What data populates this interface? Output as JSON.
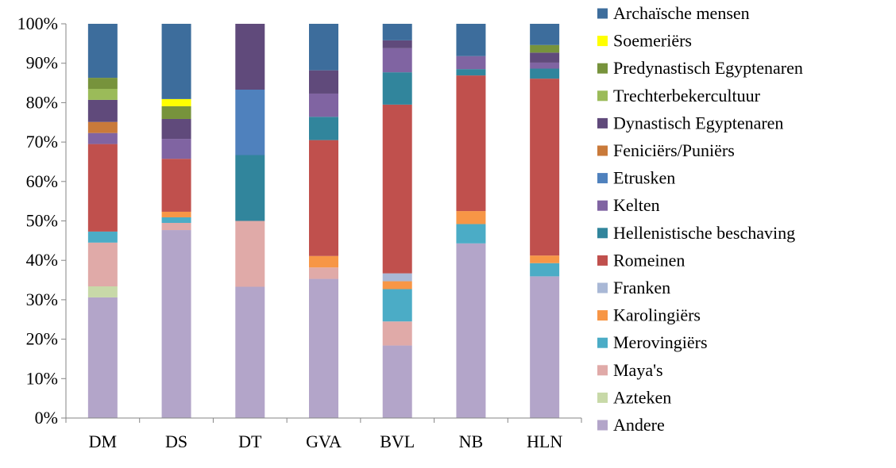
{
  "chart_data": {
    "type": "bar",
    "stacked": true,
    "percent": true,
    "categories": [
      "DM",
      "DS",
      "DT",
      "GVA",
      "BVL",
      "NB",
      "HLN"
    ],
    "y_ticks": [
      "0%",
      "10%",
      "20%",
      "30%",
      "40%",
      "50%",
      "60%",
      "70%",
      "80%",
      "90%",
      "100%"
    ],
    "ylim": [
      0,
      100
    ],
    "grid": false,
    "legend_position": "right",
    "series": [
      {
        "name": "Andere",
        "color": "#b3a5c9",
        "values": [
          30.6,
          47.2,
          33.3,
          35.3,
          18.4,
          44.3,
          35.4
        ]
      },
      {
        "name": "Azteken",
        "color": "#c8d9a8",
        "values": [
          2.8,
          0,
          0,
          0,
          0,
          0,
          0
        ]
      },
      {
        "name": "Maya's",
        "color": "#e0aaa8",
        "values": [
          11.1,
          1.8,
          16.7,
          2.9,
          6.1,
          0,
          0
        ]
      },
      {
        "name": "Merovingiërs",
        "color": "#4bacc6",
        "values": [
          2.8,
          1.4,
          0,
          0,
          8.2,
          4.9,
          3.3
        ]
      },
      {
        "name": "Karolingiërs",
        "color": "#f79646",
        "values": [
          0,
          1.4,
          0,
          2.9,
          2.0,
          3.3,
          1.9
        ]
      },
      {
        "name": "Franken",
        "color": "#a9b8d6",
        "values": [
          0,
          0,
          0,
          0,
          2.0,
          0,
          0
        ]
      },
      {
        "name": "Romeinen",
        "color": "#c0504d",
        "values": [
          22.2,
          13.3,
          0,
          29.4,
          42.8,
          34.4,
          44.2
        ]
      },
      {
        "name": "Hellenistische beschaving",
        "color": "#31859c",
        "values": [
          0,
          0,
          16.7,
          5.9,
          8.2,
          1.6,
          2.5
        ]
      },
      {
        "name": "Kelten",
        "color": "#8064a2",
        "values": [
          2.8,
          5.0,
          0,
          5.9,
          6.1,
          3.3,
          1.5
        ]
      },
      {
        "name": "Etrusken",
        "color": "#4f81bd",
        "values": [
          0,
          0,
          16.6,
          0,
          0,
          0,
          0
        ]
      },
      {
        "name": "Feniciërs/Puniërs",
        "color": "#c97a3a",
        "values": [
          2.8,
          0,
          0,
          0,
          0,
          0,
          0
        ]
      },
      {
        "name": "Dynastisch Egyptenaren",
        "color": "#604a7b",
        "values": [
          5.6,
          5.0,
          16.7,
          5.9,
          2.0,
          0,
          2.5
        ]
      },
      {
        "name": "Trechterbekercultuur",
        "color": "#9bbb59",
        "values": [
          2.8,
          0,
          0,
          0,
          0,
          0,
          0
        ]
      },
      {
        "name": "Predynastisch Egyptenaren",
        "color": "#77933c",
        "values": [
          2.8,
          3.2,
          0,
          0,
          0,
          0,
          1.9
        ]
      },
      {
        "name": "Soemeriërs",
        "color": "#ffff00",
        "values": [
          0,
          1.8,
          0,
          0,
          0,
          0,
          0
        ]
      },
      {
        "name": "Archaïsche mensen",
        "color": "#3d6d9c",
        "values": [
          13.7,
          18.9,
          0,
          11.8,
          4.2,
          8.2,
          5.3
        ]
      }
    ],
    "legend_order": [
      "Archaïsche mensen",
      "Soemeriërs",
      "Predynastisch Egyptenaren",
      "Trechterbekercultuur",
      "Dynastisch Egyptenaren",
      "Feniciërs/Puniërs",
      "Etrusken",
      "Kelten",
      "Hellenistische beschaving",
      "Romeinen",
      "Franken",
      "Karolingiërs",
      "Merovingiërs",
      "Maya's",
      "Azteken",
      "Andere"
    ]
  }
}
